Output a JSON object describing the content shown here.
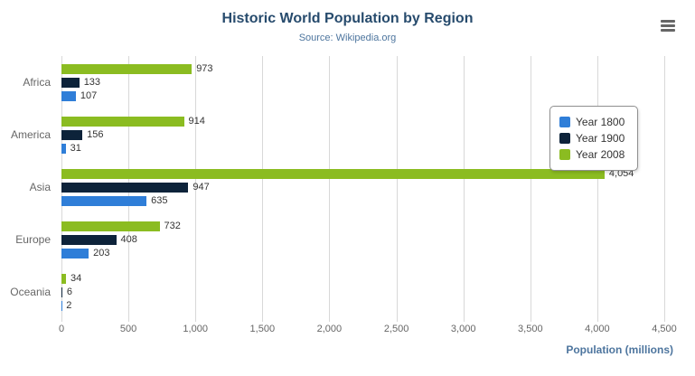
{
  "header": {
    "title": "Historic World Population by Region",
    "subtitle": "Source: Wikipedia.org"
  },
  "xaxis": {
    "title": "Population (millions)"
  },
  "menu": {
    "icon": "hamburger-menu-icon"
  },
  "chart_data": {
    "type": "bar",
    "orientation": "horizontal",
    "title": "Historic World Population by Region",
    "subtitle": "Source: Wikipedia.org",
    "xlabel": "Population (millions)",
    "categories": [
      "Africa",
      "America",
      "Asia",
      "Europe",
      "Oceania"
    ],
    "series": [
      {
        "name": "Year 1800",
        "color": "#2f7ed8",
        "values": [
          107,
          31,
          635,
          203,
          2
        ]
      },
      {
        "name": "Year 1900",
        "color": "#0d233a",
        "values": [
          133,
          156,
          947,
          408,
          6
        ]
      },
      {
        "name": "Year 2008",
        "color": "#8bbc21",
        "values": [
          973,
          914,
          4054,
          732,
          34
        ]
      }
    ],
    "bar_display_order_top_to_bottom": [
      "Year 2008",
      "Year 1900",
      "Year 1800"
    ],
    "xlim": [
      0,
      4500
    ],
    "xticks": [
      0,
      500,
      1000,
      1500,
      2000,
      2500,
      3000,
      3500,
      4000,
      4500
    ],
    "xtick_labels": [
      "0",
      "500",
      "1,000",
      "1,500",
      "2,000",
      "2,500",
      "3,000",
      "3,500",
      "4,000",
      "4,500"
    ],
    "grid": true,
    "legend_position": "right",
    "legend_items": [
      "Year 1800",
      "Year 1900",
      "Year 2008"
    ]
  }
}
